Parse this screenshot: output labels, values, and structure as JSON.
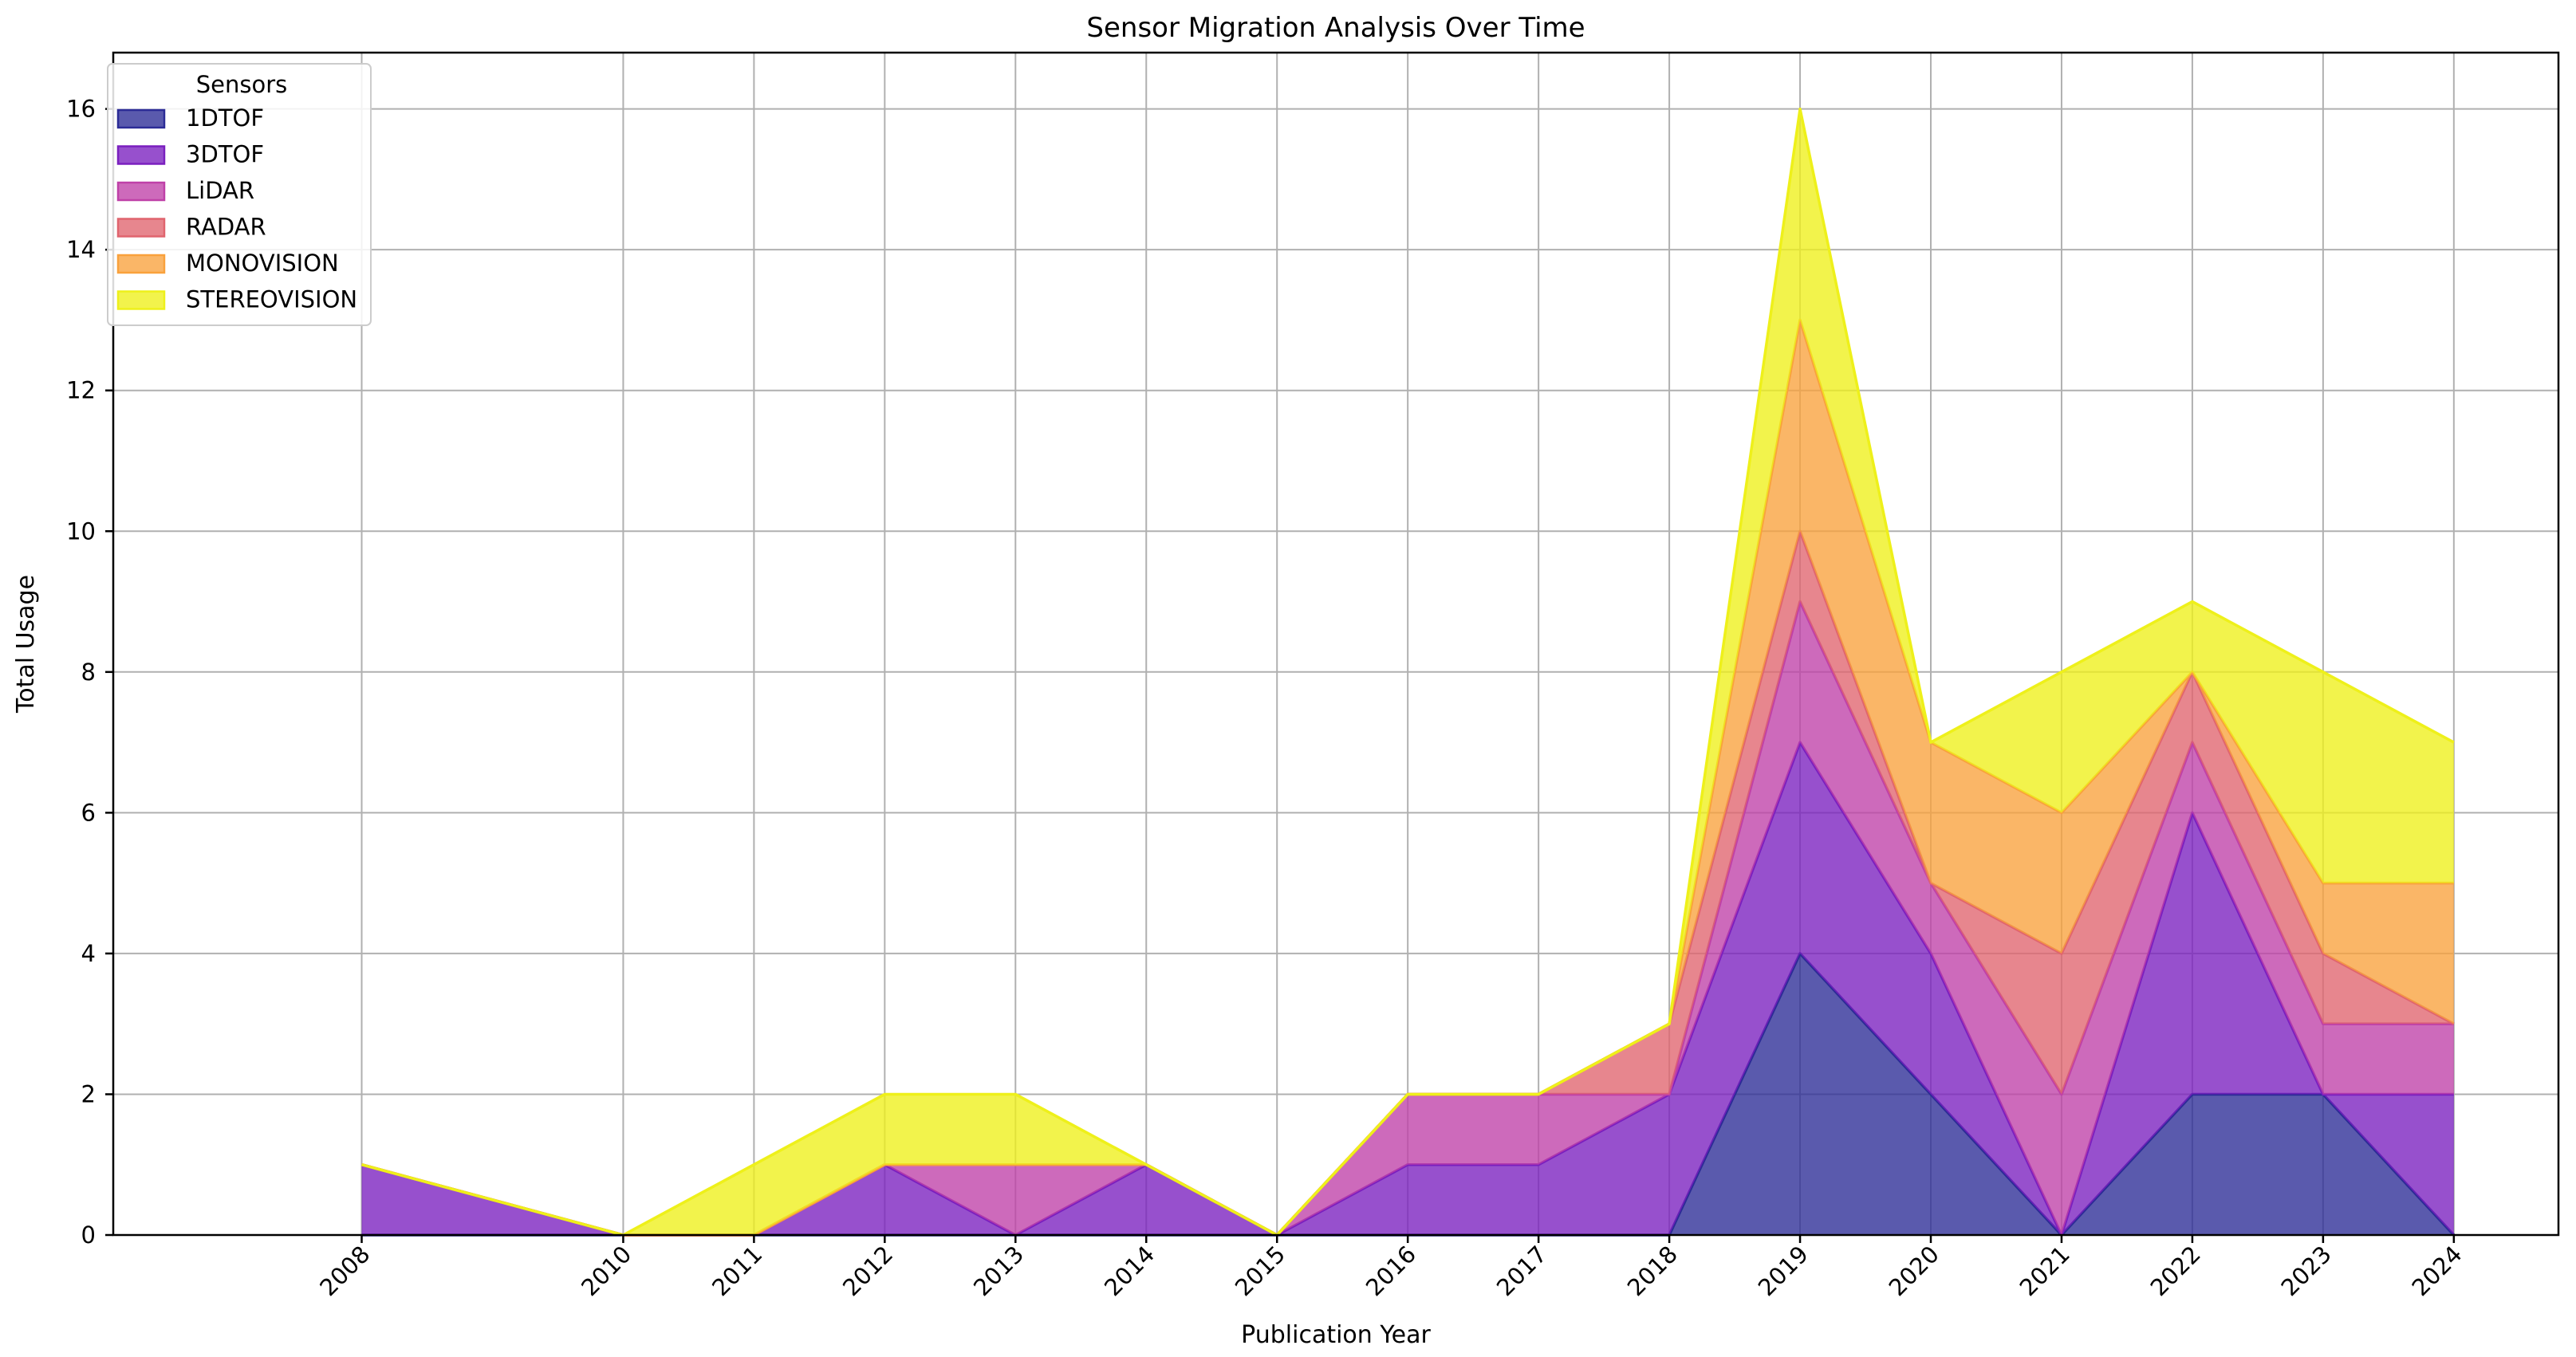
{
  "chart_data": {
    "type": "area",
    "stacked": true,
    "title": "Sensor Migration Analysis Over Time",
    "xlabel": "Publication Year",
    "ylabel": "Total Usage",
    "x": [
      2008,
      2010,
      2011,
      2012,
      2013,
      2014,
      2015,
      2016,
      2017,
      2018,
      2019,
      2020,
      2021,
      2022,
      2023,
      2024
    ],
    "x_tick_labels": [
      "2008",
      "2010",
      "2011",
      "2012",
      "2013",
      "2014",
      "2015",
      "2016",
      "2017",
      "2018",
      "2019",
      "2020",
      "2021",
      "2022",
      "2023",
      "2024"
    ],
    "ylim": [
      0,
      16.8
    ],
    "y_ticks": [
      0,
      2,
      4,
      6,
      8,
      10,
      12,
      14,
      16
    ],
    "grid": true,
    "legend": {
      "title": "Sensors",
      "placement": "top-left"
    },
    "series": [
      {
        "name": "1DTOF",
        "color": "#2b2b96",
        "values": [
          0,
          0,
          0,
          0,
          0,
          0,
          0,
          0,
          0,
          0,
          4,
          2,
          0,
          2,
          2,
          0
        ]
      },
      {
        "name": "3DTOF",
        "color": "#7a1fbf",
        "values": [
          1,
          0,
          0,
          1,
          0,
          1,
          0,
          1,
          1,
          2,
          3,
          2,
          0,
          4,
          0,
          2
        ]
      },
      {
        "name": "LiDAR",
        "color": "#bf40a8",
        "values": [
          0,
          0,
          0,
          0,
          1,
          0,
          0,
          1,
          1,
          0,
          2,
          1,
          2,
          1,
          1,
          1
        ]
      },
      {
        "name": "RADAR",
        "color": "#e0646e",
        "values": [
          0,
          0,
          0,
          0,
          0,
          0,
          0,
          0,
          0,
          1,
          1,
          0,
          2,
          1,
          1,
          0
        ]
      },
      {
        "name": "MONOVISION",
        "color": "#f9a13c",
        "values": [
          0,
          0,
          0,
          0,
          0,
          0,
          0,
          0,
          0,
          0,
          3,
          2,
          2,
          0,
          1,
          2
        ]
      },
      {
        "name": "STEREOVISION",
        "color": "#eef01a",
        "values": [
          0,
          0,
          1,
          1,
          1,
          0,
          0,
          0,
          0,
          0,
          3,
          0,
          2,
          1,
          3,
          2
        ]
      }
    ]
  }
}
